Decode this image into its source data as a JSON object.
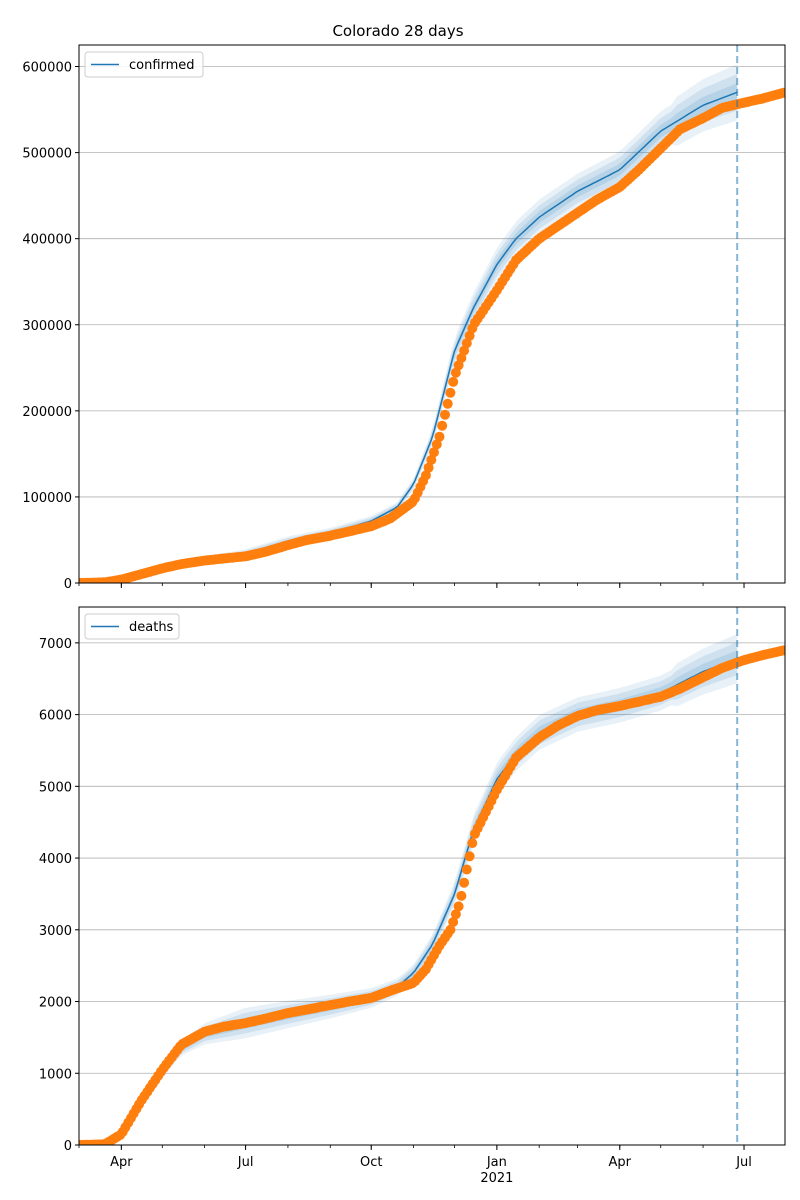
{
  "chart_data": [
    {
      "type": "line",
      "title": "Colorado 28 days",
      "xlabel": "",
      "ylabel": "",
      "x_start": "2020-03-01",
      "x_end": "2021-07-31",
      "forecast_line_date": "2021-06-26",
      "ylim": [
        0,
        625000
      ],
      "yticks": [
        0,
        100000,
        200000,
        300000,
        400000,
        500000,
        600000
      ],
      "grid": "horizontal",
      "legend": {
        "position": "top-left",
        "entries": [
          "confirmed"
        ]
      },
      "series": [
        {
          "name": "confirmed",
          "kind": "model",
          "color": "#1f77b4",
          "dates": [
            "2020-03-01",
            "2020-04-01",
            "2020-05-01",
            "2020-06-01",
            "2020-07-01",
            "2020-08-01",
            "2020-09-01",
            "2020-10-01",
            "2020-10-20",
            "2020-11-01",
            "2020-11-15",
            "2020-12-01",
            "2020-12-15",
            "2021-01-01",
            "2021-01-15",
            "2021-02-01",
            "2021-03-01",
            "2021-04-01",
            "2021-05-01",
            "2021-06-01",
            "2021-06-26"
          ],
          "values": [
            0,
            6000,
            20000,
            28000,
            34000,
            48000,
            58000,
            72000,
            88000,
            115000,
            170000,
            270000,
            320000,
            370000,
            400000,
            425000,
            455000,
            480000,
            525000,
            555000,
            570000
          ]
        },
        {
          "name": "",
          "kind": "observed",
          "color": "#ff7f0e",
          "dates": [
            "2020-03-01",
            "2020-03-20",
            "2020-04-01",
            "2020-04-15",
            "2020-05-01",
            "2020-05-15",
            "2020-06-01",
            "2020-06-15",
            "2020-07-01",
            "2020-07-15",
            "2020-08-01",
            "2020-08-15",
            "2020-09-01",
            "2020-09-15",
            "2020-10-01",
            "2020-10-15",
            "2020-11-01",
            "2020-11-10",
            "2020-11-20",
            "2020-12-01",
            "2020-12-15",
            "2021-01-01",
            "2021-01-15",
            "2021-02-01",
            "2021-02-15",
            "2021-03-01",
            "2021-03-15",
            "2021-04-01",
            "2021-04-15",
            "2021-05-01",
            "2021-05-15",
            "2021-06-01",
            "2021-06-15",
            "2021-07-01",
            "2021-07-15",
            "2021-07-31"
          ],
          "values": [
            0,
            800,
            4000,
            10000,
            17000,
            22000,
            26000,
            28500,
            31000,
            36000,
            44000,
            50000,
            55000,
            60000,
            66000,
            75000,
            95000,
            125000,
            170000,
            240000,
            300000,
            340000,
            375000,
            400000,
            415000,
            430000,
            445000,
            460000,
            480000,
            505000,
            527000,
            540000,
            552000,
            558000,
            563000,
            570000
          ]
        }
      ],
      "bands": [
        {
          "level": "outer",
          "width": [
            0,
            0.3,
            0.12,
            0.09,
            0.085
          ]
        },
        {
          "level": "middle",
          "width": [
            0,
            0.2,
            0.08,
            0.06,
            0.055
          ]
        },
        {
          "level": "inner",
          "width": [
            0,
            0.1,
            0.04,
            0.03,
            0.027
          ]
        }
      ]
    },
    {
      "type": "line",
      "title": "",
      "xlabel": "",
      "ylabel": "",
      "x_start": "2020-03-01",
      "x_end": "2021-07-31",
      "forecast_line_date": "2021-06-26",
      "ylim": [
        0,
        7500
      ],
      "yticks": [
        0,
        1000,
        2000,
        3000,
        4000,
        5000,
        6000,
        7000
      ],
      "grid": "horizontal",
      "legend": {
        "position": "top-left",
        "entries": [
          "deaths"
        ]
      },
      "xticks": [
        {
          "date": "2020-04-01",
          "label": "Apr",
          "sub": ""
        },
        {
          "date": "2020-07-01",
          "label": "Jul",
          "sub": ""
        },
        {
          "date": "2020-10-01",
          "label": "Oct",
          "sub": ""
        },
        {
          "date": "2021-01-01",
          "label": "Jan",
          "sub": "2021"
        },
        {
          "date": "2021-04-01",
          "label": "Apr",
          "sub": ""
        },
        {
          "date": "2021-07-01",
          "label": "Jul",
          "sub": ""
        }
      ],
      "series": [
        {
          "name": "deaths",
          "kind": "model",
          "color": "#1f77b4",
          "dates": [
            "2020-03-01",
            "2020-03-20",
            "2020-04-01",
            "2020-04-15",
            "2020-05-01",
            "2020-05-15",
            "2020-06-01",
            "2020-07-01",
            "2020-08-01",
            "2020-09-01",
            "2020-10-01",
            "2020-10-20",
            "2020-11-01",
            "2020-11-15",
            "2020-12-01",
            "2020-12-15",
            "2021-01-01",
            "2021-01-15",
            "2021-02-01",
            "2021-03-01",
            "2021-04-01",
            "2021-05-01",
            "2021-06-01",
            "2021-06-26"
          ],
          "values": [
            0,
            10,
            150,
            550,
            1000,
            1350,
            1550,
            1700,
            1820,
            1930,
            2050,
            2200,
            2400,
            2800,
            3500,
            4400,
            5100,
            5450,
            5750,
            6000,
            6130,
            6300,
            6600,
            6780
          ]
        },
        {
          "name": "",
          "kind": "observed",
          "color": "#ff7f0e",
          "dates": [
            "2020-03-01",
            "2020-03-20",
            "2020-04-01",
            "2020-04-15",
            "2020-05-01",
            "2020-05-15",
            "2020-06-01",
            "2020-06-15",
            "2020-07-01",
            "2020-07-15",
            "2020-08-01",
            "2020-08-15",
            "2020-09-01",
            "2020-09-15",
            "2020-10-01",
            "2020-10-15",
            "2020-11-01",
            "2020-11-10",
            "2020-11-20",
            "2020-11-28",
            "2020-12-05",
            "2020-12-15",
            "2021-01-01",
            "2021-01-15",
            "2021-02-01",
            "2021-02-15",
            "2021-03-01",
            "2021-03-15",
            "2021-04-01",
            "2021-04-15",
            "2021-05-01",
            "2021-05-15",
            "2021-06-01",
            "2021-06-15",
            "2021-07-01",
            "2021-07-15",
            "2021-07-31"
          ],
          "values": [
            0,
            10,
            150,
            600,
            1050,
            1400,
            1580,
            1650,
            1700,
            1760,
            1840,
            1890,
            1950,
            2000,
            2050,
            2150,
            2260,
            2450,
            2780,
            3000,
            3380,
            4300,
            4950,
            5400,
            5680,
            5850,
            5980,
            6060,
            6120,
            6180,
            6250,
            6360,
            6520,
            6650,
            6760,
            6830,
            6900
          ]
        }
      ],
      "bands": [
        {
          "level": "outer",
          "width": [
            0,
            0.25,
            0.1,
            0.08,
            0.075
          ]
        },
        {
          "level": "middle",
          "width": [
            0,
            0.17,
            0.07,
            0.055,
            0.05
          ]
        },
        {
          "level": "inner",
          "width": [
            0,
            0.09,
            0.035,
            0.028,
            0.025
          ]
        }
      ]
    }
  ]
}
